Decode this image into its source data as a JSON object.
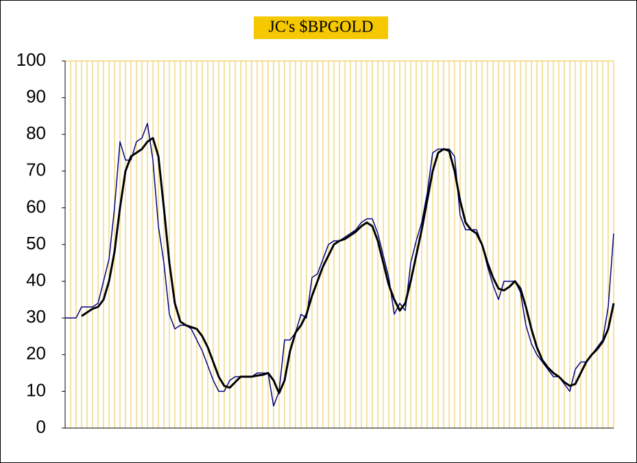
{
  "chart_data": {
    "type": "line",
    "title": "JC's $BPGOLD",
    "categories": [
      null,
      null,
      null,
      null,
      null,
      null,
      null,
      null,
      null,
      null,
      null,
      null,
      null,
      null,
      null,
      null,
      null,
      null,
      null,
      null,
      null,
      null,
      null,
      null,
      null,
      null,
      null,
      null,
      null,
      null,
      null,
      null,
      null,
      null,
      null,
      null,
      null,
      null,
      null,
      null,
      null,
      null,
      null,
      null,
      null,
      null,
      null,
      null,
      null,
      null,
      null,
      null,
      null,
      null,
      null,
      null,
      null,
      null,
      null,
      null,
      null,
      null,
      null,
      null,
      null,
      null,
      null,
      null,
      null,
      null,
      null,
      null,
      null,
      null,
      null,
      null,
      null,
      null,
      null,
      null,
      null,
      null,
      null,
      null,
      null,
      null,
      null,
      null,
      null,
      null,
      null,
      null,
      null,
      null,
      null,
      null,
      null,
      null,
      null,
      null,
      null
    ],
    "series": [
      {
        "color": "#000080",
        "width": 1.5,
        "values": [
          30,
          30,
          30,
          33,
          33,
          33,
          34,
          40,
          46,
          60,
          78,
          73,
          73,
          78,
          79,
          83,
          73,
          55,
          45,
          31,
          27,
          28,
          28,
          27,
          24,
          21,
          17,
          13,
          10,
          10,
          13,
          14,
          14,
          14,
          14,
          15,
          15,
          15,
          6,
          10,
          24,
          24,
          26,
          31,
          30,
          41,
          42,
          46,
          50,
          51,
          51,
          52,
          53,
          54,
          56,
          57,
          57,
          53,
          47,
          41,
          31,
          34,
          32,
          45,
          51,
          56,
          64,
          75,
          76,
          76,
          76,
          74,
          58,
          54,
          54,
          54,
          50,
          44,
          39,
          35,
          40,
          40,
          40,
          37,
          28,
          23,
          20,
          18,
          16,
          14,
          14,
          12,
          10,
          16,
          18,
          18,
          20,
          22,
          24,
          33,
          53
        ]
      },
      {
        "color": "#000000",
        "width": 3,
        "values": [
          null,
          null,
          null,
          30.5,
          31.5,
          32.5,
          33,
          35,
          40,
          48,
          60,
          70,
          74,
          75,
          76,
          78,
          79,
          74,
          60,
          45,
          34,
          29,
          28,
          27.5,
          27,
          25,
          22,
          18,
          14,
          11.5,
          11,
          12.5,
          14,
          14,
          14,
          14.3,
          14.5,
          15,
          13,
          9.5,
          13,
          21,
          26,
          28,
          31,
          36,
          40,
          44,
          47,
          50,
          51,
          51.5,
          52.5,
          53.5,
          55,
          56,
          55,
          51,
          45,
          39,
          35,
          32,
          34,
          40,
          47,
          54,
          62,
          70,
          75,
          76,
          75.5,
          70,
          62,
          56,
          54,
          53,
          50,
          45,
          41,
          38,
          37.5,
          38.5,
          40,
          38,
          33,
          27,
          22,
          18.5,
          16.5,
          15,
          14,
          12.5,
          11.5,
          12,
          15,
          18,
          20,
          21.5,
          23.5,
          27,
          34
        ]
      }
    ],
    "ylim": [
      0,
      100
    ],
    "yticks": [
      0,
      10,
      20,
      30,
      40,
      50,
      60,
      70,
      80,
      90,
      100
    ],
    "grid": true
  }
}
